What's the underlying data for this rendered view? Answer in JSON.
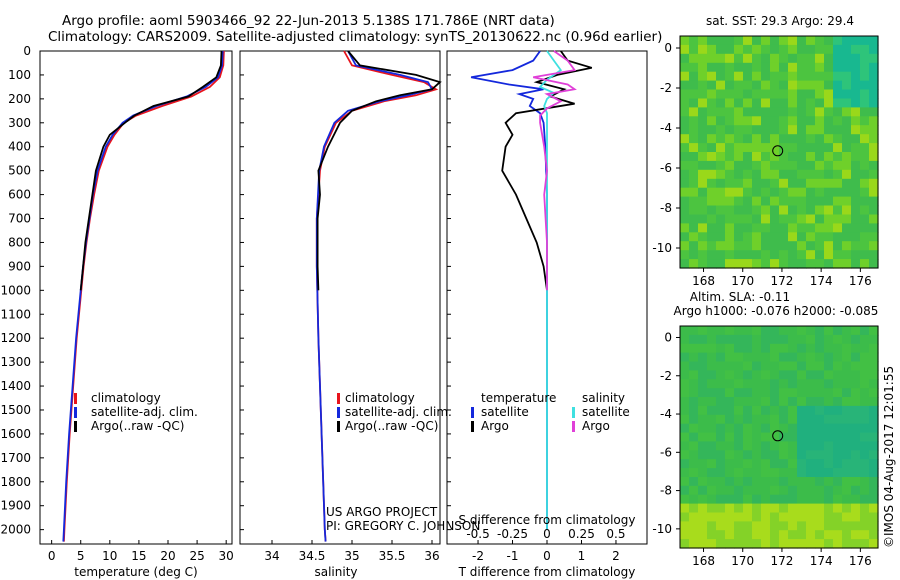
{
  "header": {
    "line1": "Argo profile: aoml 5903466_92 22-Jun-2013 5.138S 171.786E (NRT data)",
    "line2": "Climatology: CARS2009. Satellite-adjusted climatology: synTS_20130622.nc (0.96d earlier)"
  },
  "colors": {
    "climatology": "#e8141c",
    "satellite": "#1428dc",
    "argo": "#000000",
    "sat_salinity": "#3ee0e0",
    "argo_salinity": "#e040d8"
  },
  "depth_ticks": [
    "0",
    "100",
    "200",
    "300",
    "400",
    "500",
    "600",
    "700",
    "800",
    "900",
    "1000",
    "1100",
    "1200",
    "1300",
    "1400",
    "1500",
    "1600",
    "1700",
    "1800",
    "1900",
    "2000"
  ],
  "temp_panel": {
    "xlabel": "temperature (deg C)",
    "xticks": [
      "0",
      "5",
      "10",
      "15",
      "20",
      "25",
      "30"
    ],
    "legend": [
      "climatology",
      "satellite-adj. clim.",
      "Argo(..raw -QC)"
    ],
    "chart_data": {
      "type": "line",
      "xlim": [
        -2,
        31
      ],
      "ylim": [
        2060,
        0
      ],
      "series": [
        {
          "name": "climatology",
          "depth": [
            0,
            60,
            110,
            150,
            190,
            230,
            270,
            300,
            350,
            400,
            500,
            600,
            700,
            800,
            900,
            1000,
            1200,
            1400,
            1600,
            1800,
            2000,
            2050
          ],
          "values": [
            29.6,
            29.5,
            28.9,
            27.2,
            24.0,
            19.0,
            14.5,
            12.4,
            10.8,
            9.6,
            8.1,
            7.3,
            6.6,
            6.0,
            5.5,
            5.1,
            4.3,
            3.7,
            3.1,
            2.6,
            2.2,
            2.1
          ]
        },
        {
          "name": "satellite-adj. clim.",
          "depth": [
            0,
            60,
            110,
            150,
            190,
            230,
            270,
            300,
            350,
            400,
            500,
            600,
            700,
            800,
            900,
            1000,
            1200,
            1400,
            1600,
            1800,
            2000,
            2050
          ],
          "values": [
            29.4,
            29.3,
            28.6,
            26.5,
            23.2,
            18.0,
            14.0,
            12.2,
            10.5,
            9.3,
            7.9,
            7.1,
            6.5,
            5.9,
            5.4,
            5.0,
            4.2,
            3.6,
            3.0,
            2.5,
            2.1,
            2.0
          ]
        },
        {
          "name": "Argo(..raw -QC)",
          "depth": [
            0,
            60,
            110,
            150,
            190,
            230,
            270,
            300,
            350,
            400,
            500,
            600,
            700,
            800,
            900,
            1000
          ],
          "values": [
            29.2,
            29.1,
            28.3,
            26.0,
            23.5,
            17.5,
            14.2,
            12.6,
            10.0,
            8.9,
            7.6,
            7.0,
            6.4,
            5.8,
            5.4,
            5.0
          ]
        }
      ]
    }
  },
  "sal_panel": {
    "xlabel": "salinity",
    "xticks": [
      "34",
      "34.5",
      "35",
      "35.5",
      "36"
    ],
    "legend": [
      "climatology",
      "satellite-adj. clim.",
      "Argo(..raw -QC)"
    ],
    "credit1": "US ARGO PROJECT",
    "credit2": "PI: GREGORY C. JOHNSON",
    "chart_data": {
      "type": "line",
      "xlim": [
        33.6,
        36.1
      ],
      "ylim": [
        2060,
        0
      ],
      "series": [
        {
          "name": "climatology",
          "depth": [
            0,
            60,
            100,
            130,
            160,
            185,
            210,
            250,
            300,
            400,
            500,
            700,
            900,
            1200,
            1500,
            1800,
            2000,
            2050
          ],
          "values": [
            34.9,
            35.0,
            35.5,
            35.9,
            36.05,
            35.8,
            35.4,
            35.0,
            34.8,
            34.66,
            34.6,
            34.56,
            34.56,
            34.58,
            34.61,
            34.64,
            34.66,
            34.67
          ]
        },
        {
          "name": "satellite-adj. clim.",
          "depth": [
            0,
            60,
            100,
            130,
            160,
            185,
            210,
            250,
            300,
            400,
            500,
            700,
            900,
            1200,
            1500,
            1800,
            2000,
            2050
          ],
          "values": [
            34.95,
            35.05,
            35.6,
            35.95,
            36.0,
            35.7,
            35.35,
            34.95,
            34.78,
            34.65,
            34.59,
            34.56,
            34.56,
            34.58,
            34.61,
            34.64,
            34.66,
            34.67
          ]
        },
        {
          "name": "Argo(..raw -QC)",
          "depth": [
            0,
            60,
            100,
            130,
            160,
            185,
            210,
            250,
            300,
            400,
            500,
            600,
            700,
            800,
            900,
            1000
          ],
          "values": [
            34.95,
            35.1,
            35.8,
            36.1,
            36.0,
            35.6,
            35.3,
            35.0,
            34.85,
            34.7,
            34.58,
            34.6,
            34.57,
            34.57,
            34.57,
            34.58
          ]
        }
      ]
    }
  },
  "diff_panel": {
    "xlabel": "T difference from climatology",
    "top_label": "S difference from climatology",
    "xticks": [
      "-2",
      "-1",
      "0",
      "1",
      "2"
    ],
    "sticks": [
      "-0.5",
      "-0.25",
      "0",
      "0.25",
      "0.5"
    ],
    "legend_t_title": "temperature",
    "legend_s_title": "salinity",
    "legend_t": [
      "satellite",
      "Argo"
    ],
    "legend_s": [
      "satellite",
      "Argo"
    ],
    "chart_data": {
      "type": "line",
      "xlim": [
        -2.9,
        2.9
      ],
      "ylim": [
        2060,
        0
      ],
      "series": [
        {
          "name": "temperature satellite",
          "depth": [
            0,
            40,
            80,
            110,
            140,
            160,
            180,
            200,
            230,
            260,
            300,
            400,
            600,
            800,
            1000,
            1500,
            2000
          ],
          "values": [
            -0.2,
            -0.4,
            -1.0,
            -2.2,
            -1.1,
            -0.1,
            -0.8,
            -0.4,
            -0.5,
            -0.2,
            -0.1,
            -0.05,
            0,
            0,
            0,
            0,
            0
          ]
        },
        {
          "name": "temperature Argo",
          "depth": [
            0,
            40,
            70,
            100,
            130,
            160,
            190,
            220,
            260,
            300,
            350,
            400,
            500,
            600,
            700,
            800,
            900,
            1000
          ],
          "values": [
            0.4,
            0.6,
            1.3,
            0.3,
            -0.3,
            0.5,
            0.1,
            0.8,
            -0.9,
            -1.2,
            -1.0,
            -1.2,
            -1.3,
            -0.9,
            -0.6,
            -0.3,
            -0.1,
            0.0
          ]
        },
        {
          "name": "salinity satellite",
          "depth": [
            0,
            40,
            80,
            120,
            150,
            175,
            200,
            230,
            260,
            300,
            400,
            600,
            800,
            1000,
            1500,
            2000
          ],
          "values": [
            0.0,
            0.05,
            0.1,
            0.0,
            -0.05,
            0.05,
            0.0,
            -0.02,
            0.0,
            0.0,
            0.0,
            0.0,
            0.0,
            0.0,
            0.0,
            0.0
          ]
        },
        {
          "name": "salinity Argo",
          "depth": [
            0,
            40,
            80,
            110,
            140,
            160,
            180,
            210,
            240,
            270,
            300,
            400,
            500,
            600,
            800,
            1000
          ],
          "values": [
            0.05,
            0.15,
            0.2,
            -0.1,
            0.15,
            0.2,
            0.0,
            0.1,
            0.0,
            -0.05,
            -0.05,
            -0.02,
            0.0,
            -0.02,
            0.0,
            0.0
          ]
        }
      ]
    }
  },
  "sst_map": {
    "title": "sat. SST: 29.3  Argo: 29.4",
    "xticks": [
      "168",
      "170",
      "172",
      "174",
      "176"
    ],
    "yticks": [
      "0",
      "-2",
      "-4",
      "-6",
      "-8",
      "-10"
    ],
    "chart_data": {
      "type": "heatmap",
      "lon_range": [
        166.8,
        176.9
      ],
      "lat_range": [
        -11,
        0.6
      ],
      "marker": {
        "lon": 171.786,
        "lat": -5.138
      }
    }
  },
  "sla_map": {
    "title1": "Altim. SLA: -0.11",
    "title2": "Argo h1000: -0.076  h2000: -0.085",
    "xticks": [
      "168",
      "170",
      "172",
      "174",
      "176"
    ],
    "yticks": [
      "0",
      "-2",
      "-4",
      "-6",
      "-8",
      "-10"
    ],
    "chart_data": {
      "type": "heatmap",
      "lon_range": [
        166.8,
        176.9
      ],
      "lat_range": [
        -11,
        0.6
      ],
      "marker": {
        "lon": 171.786,
        "lat": -5.138
      }
    }
  },
  "footer": {
    "stamp": "©IMOS 04-Aug-2017 12:01:55"
  }
}
